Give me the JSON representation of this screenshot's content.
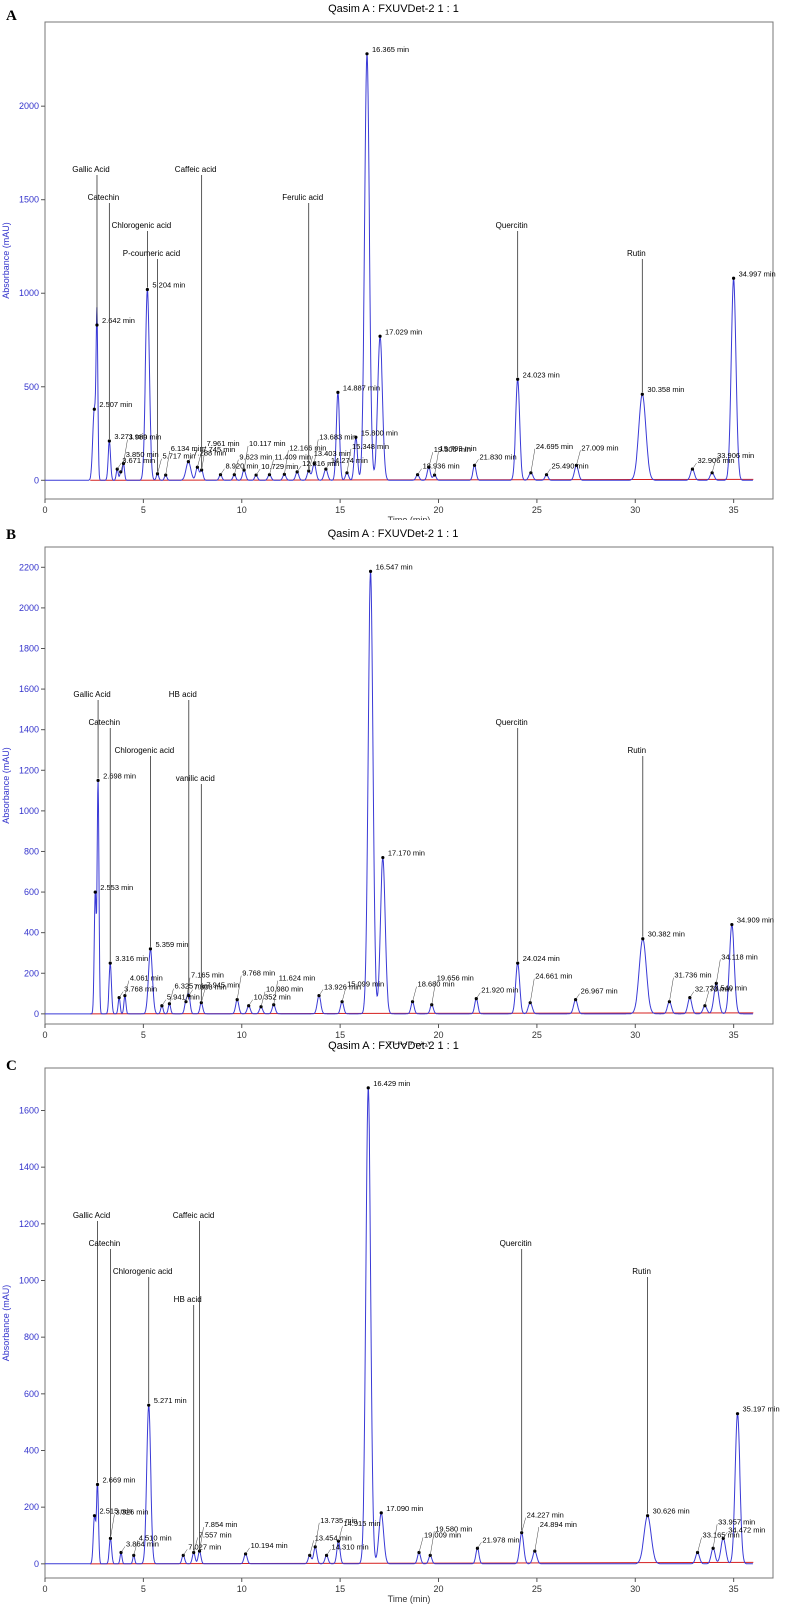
{
  "chart_data": [
    {
      "panel": "A",
      "title": "Qasim A : FXUVDet-2 1 : 1",
      "type": "line",
      "xlabel": "Time (min)",
      "ylabel": "Absorbance (mAU)",
      "xlim": [
        0,
        37
      ],
      "ylim": [
        -100,
        2450
      ],
      "xticks": [
        0,
        5,
        10,
        15,
        20,
        25,
        30,
        35
      ],
      "yticks": [
        0,
        500,
        1000,
        1500,
        2000
      ],
      "baseline_line": true,
      "colors": {
        "trace": "#3a3ad6",
        "baseline": "#d42020",
        "label": "#000000",
        "axis_text": "#3333cc"
      },
      "peaks": [
        {
          "rt": 2.507,
          "h": 380,
          "w": 0.08,
          "label": "2.507 min"
        },
        {
          "rt": 2.642,
          "h": 830,
          "w": 0.045,
          "label": "2.642 min"
        },
        {
          "rt": 3.271,
          "h": 210,
          "w": 0.06,
          "label": "3.271 min"
        },
        {
          "rt": 3.671,
          "h": 60,
          "w": 0.05,
          "label": "3.671 min"
        },
        {
          "rt": 3.85,
          "h": 45,
          "w": 0.05,
          "label": "3.850 min"
        },
        {
          "rt": 3.989,
          "h": 90,
          "w": 0.05,
          "label": "3.989 min"
        },
        {
          "rt": 5.204,
          "h": 1020,
          "w": 0.1,
          "label": "5.204 min"
        },
        {
          "rt": 5.717,
          "h": 35,
          "w": 0.06,
          "label": "5.717 min"
        },
        {
          "rt": 6.134,
          "h": 28,
          "w": 0.06,
          "label": "6.134 min"
        },
        {
          "rt": 7.288,
          "h": 100,
          "w": 0.12,
          "label": "7.288 min"
        },
        {
          "rt": 7.745,
          "h": 70,
          "w": 0.08,
          "label": "7.745 min"
        },
        {
          "rt": 7.961,
          "h": 55,
          "w": 0.07,
          "label": "7.961 min"
        },
        {
          "rt": 8.92,
          "h": 30,
          "w": 0.07,
          "label": "8.920 min"
        },
        {
          "rt": 9.623,
          "h": 30,
          "w": 0.07,
          "label": "9.623 min"
        },
        {
          "rt": 10.117,
          "h": 55,
          "w": 0.08,
          "label": "10.117 min"
        },
        {
          "rt": 10.729,
          "h": 28,
          "w": 0.07,
          "label": "10.729 min"
        },
        {
          "rt": 11.409,
          "h": 30,
          "w": 0.08,
          "label": "11.409 min"
        },
        {
          "rt": 12.166,
          "h": 32,
          "w": 0.08,
          "label": "12.166 min"
        },
        {
          "rt": 12.816,
          "h": 45,
          "w": 0.08,
          "label": "12.816 min"
        },
        {
          "rt": 13.403,
          "h": 50,
          "w": 0.08,
          "label": "13.403 min"
        },
        {
          "rt": 13.683,
          "h": 90,
          "w": 0.09,
          "label": "13.683 min"
        },
        {
          "rt": 14.274,
          "h": 60,
          "w": 0.09,
          "label": "14.274 min"
        },
        {
          "rt": 14.887,
          "h": 470,
          "w": 0.08,
          "label": "14.887 min"
        },
        {
          "rt": 15.348,
          "h": 40,
          "w": 0.08,
          "label": "15.348 min"
        },
        {
          "rt": 15.8,
          "h": 230,
          "w": 0.08,
          "label": "15.800 min"
        },
        {
          "rt": 16.365,
          "h": 2280,
          "w": 0.12,
          "label": "16.365 min"
        },
        {
          "rt": 17.029,
          "h": 770,
          "w": 0.12,
          "label": "17.029 min"
        },
        {
          "rt": 18.936,
          "h": 30,
          "w": 0.08,
          "label": "18.936 min"
        },
        {
          "rt": 19.506,
          "h": 70,
          "w": 0.08,
          "label": "19.506 min"
        },
        {
          "rt": 19.799,
          "h": 28,
          "w": 0.08,
          "label": "19.799 min"
        },
        {
          "rt": 21.83,
          "h": 80,
          "w": 0.08,
          "label": "21.830 min"
        },
        {
          "rt": 24.023,
          "h": 540,
          "w": 0.1,
          "label": "24.023 min"
        },
        {
          "rt": 24.695,
          "h": 40,
          "w": 0.1,
          "label": "24.695 min"
        },
        {
          "rt": 25.49,
          "h": 30,
          "w": 0.08,
          "label": "25.490 min"
        },
        {
          "rt": 27.009,
          "h": 80,
          "w": 0.1,
          "label": "27.009 min"
        },
        {
          "rt": 30.358,
          "h": 460,
          "w": 0.18,
          "label": "30.358 min"
        },
        {
          "rt": 32.906,
          "h": 60,
          "w": 0.1,
          "label": "32.906 min"
        },
        {
          "rt": 33.906,
          "h": 40,
          "w": 0.1,
          "label": "33.906 min"
        },
        {
          "rt": 34.997,
          "h": 1080,
          "w": 0.12,
          "label": "34.997 min"
        }
      ],
      "compounds": [
        {
          "name": "Gallic Acid",
          "rt": 2.642
        },
        {
          "name": "Catechin",
          "rt": 3.271
        },
        {
          "name": "Chlorogenic acid",
          "rt": 5.204
        },
        {
          "name": "P-coumeric acid",
          "rt": 5.717
        },
        {
          "name": "Caffeic acid",
          "rt": 7.961
        },
        {
          "name": "Ferulic acid",
          "rt": 13.403
        },
        {
          "name": "Quercitin",
          "rt": 24.023
        },
        {
          "name": "Rutin",
          "rt": 30.358
        }
      ]
    },
    {
      "panel": "B",
      "title": "Qasim A : FXUVDet-2 1 : 1",
      "type": "line",
      "xlabel": "Time (min)",
      "ylabel": "Absorbance (mAU)",
      "xlim": [
        0,
        37
      ],
      "ylim": [
        -50,
        2300
      ],
      "xticks": [
        0,
        5,
        10,
        15,
        20,
        25,
        30,
        35
      ],
      "yticks": [
        0,
        200,
        400,
        600,
        800,
        1000,
        1200,
        1400,
        1600,
        1800,
        2000,
        2200
      ],
      "baseline_line": true,
      "colors": {
        "trace": "#3a3ad6",
        "baseline": "#d42020",
        "label": "#000000",
        "axis_text": "#3333cc"
      },
      "peaks": [
        {
          "rt": 2.553,
          "h": 600,
          "w": 0.05,
          "label": "2.553 min"
        },
        {
          "rt": 2.698,
          "h": 1150,
          "w": 0.045,
          "label": "2.698 min"
        },
        {
          "rt": 3.316,
          "h": 250,
          "w": 0.06,
          "label": "3.316 min"
        },
        {
          "rt": 3.768,
          "h": 80,
          "w": 0.05,
          "label": "3.768 min"
        },
        {
          "rt": 4.061,
          "h": 90,
          "w": 0.05,
          "label": "4.061 min"
        },
        {
          "rt": 5.359,
          "h": 320,
          "w": 0.1,
          "label": "5.359 min"
        },
        {
          "rt": 5.941,
          "h": 40,
          "w": 0.06,
          "label": "5.941 min"
        },
        {
          "rt": 6.325,
          "h": 50,
          "w": 0.06,
          "label": "6.325 min"
        },
        {
          "rt": 7.165,
          "h": 60,
          "w": 0.07,
          "label": "7.165 min"
        },
        {
          "rt": 7.308,
          "h": 90,
          "w": 0.07,
          "label": "7.308 min"
        },
        {
          "rt": 7.945,
          "h": 55,
          "w": 0.07,
          "label": "7.945 min"
        },
        {
          "rt": 9.768,
          "h": 70,
          "w": 0.08,
          "label": "9.768 min"
        },
        {
          "rt": 10.352,
          "h": 40,
          "w": 0.08,
          "label": "10.352 min"
        },
        {
          "rt": 10.98,
          "h": 35,
          "w": 0.08,
          "label": "10.980 min"
        },
        {
          "rt": 11.624,
          "h": 45,
          "w": 0.08,
          "label": "11.624 min"
        },
        {
          "rt": 13.926,
          "h": 90,
          "w": 0.09,
          "label": "13.926 min"
        },
        {
          "rt": 15.099,
          "h": 60,
          "w": 0.08,
          "label": "15.099 min"
        },
        {
          "rt": 16.547,
          "h": 2180,
          "w": 0.12,
          "label": "16.547 min"
        },
        {
          "rt": 17.17,
          "h": 770,
          "w": 0.12,
          "label": "17.170 min"
        },
        {
          "rt": 18.68,
          "h": 60,
          "w": 0.08,
          "label": "18.680 min"
        },
        {
          "rt": 19.656,
          "h": 45,
          "w": 0.08,
          "label": "19.656 min"
        },
        {
          "rt": 21.92,
          "h": 75,
          "w": 0.08,
          "label": "21.920 min"
        },
        {
          "rt": 24.024,
          "h": 250,
          "w": 0.1,
          "label": "24.024 min"
        },
        {
          "rt": 24.661,
          "h": 55,
          "w": 0.1,
          "label": "24.661 min"
        },
        {
          "rt": 26.967,
          "h": 70,
          "w": 0.1,
          "label": "26.967 min"
        },
        {
          "rt": 30.382,
          "h": 370,
          "w": 0.18,
          "label": "30.382 min"
        },
        {
          "rt": 31.736,
          "h": 60,
          "w": 0.1,
          "label": "31.736 min"
        },
        {
          "rt": 32.773,
          "h": 80,
          "w": 0.1,
          "label": "32.773 min"
        },
        {
          "rt": 33.54,
          "h": 40,
          "w": 0.1,
          "label": "33.540 min"
        },
        {
          "rt": 34.118,
          "h": 150,
          "w": 0.12,
          "label": "34.118 min"
        },
        {
          "rt": 34.909,
          "h": 440,
          "w": 0.12,
          "label": "34.909 min"
        }
      ],
      "compounds": [
        {
          "name": "Gallic Acid",
          "rt": 2.698
        },
        {
          "name": "Catechin",
          "rt": 3.316
        },
        {
          "name": "Chlorogenic acid",
          "rt": 5.359
        },
        {
          "name": "vanilic acid",
          "rt": 7.945
        },
        {
          "name": "HB acid",
          "rt": 7.308
        },
        {
          "name": "Quercitin",
          "rt": 24.024
        },
        {
          "name": "Rutin",
          "rt": 30.382
        }
      ]
    },
    {
      "panel": "C",
      "title": "Qasim A : FXUVDet-2 1 : 1",
      "type": "line",
      "xlabel": "Time (min)",
      "ylabel": "Absorbance (mAU)",
      "xlim": [
        0,
        37
      ],
      "ylim": [
        -50,
        1750
      ],
      "xticks": [
        0,
        5,
        10,
        15,
        20,
        25,
        30,
        35
      ],
      "yticks": [
        0,
        200,
        400,
        600,
        800,
        1000,
        1200,
        1400,
        1600
      ],
      "baseline_line": true,
      "colors": {
        "trace": "#3a3ad6",
        "baseline": "#d42020",
        "label": "#000000",
        "axis_text": "#3333cc"
      },
      "peaks": [
        {
          "rt": 2.515,
          "h": 170,
          "w": 0.06,
          "label": "2.515 min"
        },
        {
          "rt": 2.669,
          "h": 280,
          "w": 0.05,
          "label": "2.669 min"
        },
        {
          "rt": 3.326,
          "h": 90,
          "w": 0.06,
          "label": "3.326 min"
        },
        {
          "rt": 3.864,
          "h": 40,
          "w": 0.05,
          "label": "3.864 min"
        },
        {
          "rt": 4.51,
          "h": 30,
          "w": 0.05,
          "label": "4.510 min"
        },
        {
          "rt": 5.271,
          "h": 560,
          "w": 0.1,
          "label": "5.271 min"
        },
        {
          "rt": 7.027,
          "h": 30,
          "w": 0.07,
          "label": "7.027 min"
        },
        {
          "rt": 7.557,
          "h": 40,
          "w": 0.07,
          "label": "7.557 min"
        },
        {
          "rt": 7.854,
          "h": 45,
          "w": 0.07,
          "label": "7.854 min"
        },
        {
          "rt": 10.194,
          "h": 35,
          "w": 0.08,
          "label": "10.194 min"
        },
        {
          "rt": 13.454,
          "h": 30,
          "w": 0.08,
          "label": "13.454 min"
        },
        {
          "rt": 13.735,
          "h": 60,
          "w": 0.08,
          "label": "13.735 min"
        },
        {
          "rt": 14.31,
          "h": 30,
          "w": 0.08,
          "label": "14.310 min"
        },
        {
          "rt": 14.915,
          "h": 80,
          "w": 0.08,
          "label": "14.915 min"
        },
        {
          "rt": 16.429,
          "h": 1680,
          "w": 0.12,
          "label": "16.429 min"
        },
        {
          "rt": 17.09,
          "h": 180,
          "w": 0.12,
          "label": "17.090 min"
        },
        {
          "rt": 19.009,
          "h": 40,
          "w": 0.08,
          "label": "19.009 min"
        },
        {
          "rt": 19.58,
          "h": 30,
          "w": 0.08,
          "label": "19.580 min"
        },
        {
          "rt": 21.978,
          "h": 55,
          "w": 0.08,
          "label": "21.978 min"
        },
        {
          "rt": 24.227,
          "h": 110,
          "w": 0.1,
          "label": "24.227 min"
        },
        {
          "rt": 24.894,
          "h": 45,
          "w": 0.1,
          "label": "24.894 min"
        },
        {
          "rt": 30.626,
          "h": 170,
          "w": 0.18,
          "label": "30.626 min"
        },
        {
          "rt": 33.165,
          "h": 40,
          "w": 0.1,
          "label": "33.165 min"
        },
        {
          "rt": 33.957,
          "h": 55,
          "w": 0.1,
          "label": "33.957 min"
        },
        {
          "rt": 34.472,
          "h": 90,
          "w": 0.12,
          "label": "34.472 min"
        },
        {
          "rt": 35.197,
          "h": 530,
          "w": 0.12,
          "label": "35.197 min"
        }
      ],
      "compounds": [
        {
          "name": "Gallic Acid",
          "rt": 2.669
        },
        {
          "name": "Catechin",
          "rt": 3.326
        },
        {
          "name": "Chlorogenic acid",
          "rt": 5.271
        },
        {
          "name": "HB acid",
          "rt": 7.557
        },
        {
          "name": "Caffeic acid",
          "rt": 7.854
        },
        {
          "name": "Quercitin",
          "rt": 24.227
        },
        {
          "name": "Rutin",
          "rt": 30.626
        }
      ]
    }
  ]
}
